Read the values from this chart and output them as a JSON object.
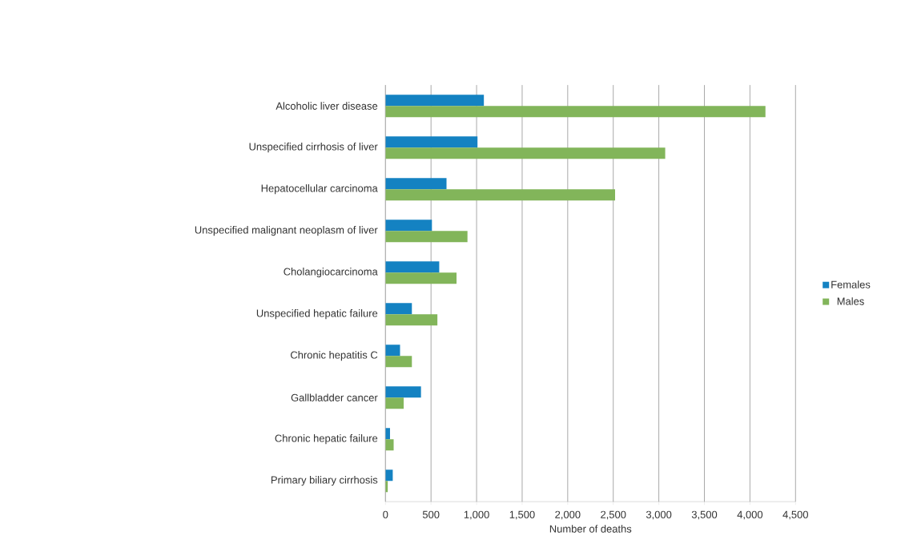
{
  "chart_data": {
    "type": "bar",
    "orientation": "horizontal",
    "xlabel": "Number of deaths",
    "categories": [
      "Alcoholic liver disease",
      "Unspecified cirrhosis of liver",
      "Hepatocellular carcinoma",
      "Unspecified malignant neoplasm of liver",
      "Cholangiocarcinoma",
      "Unspecified hepatic failure",
      "Chronic hepatitis C",
      "Gallbladder cancer",
      "Chronic hepatic failure",
      "Primary biliary cirrhosis"
    ],
    "series": [
      {
        "name": "Females",
        "color": "#1482c2",
        "values": [
          1080,
          1010,
          670,
          510,
          590,
          290,
          160,
          390,
          50,
          80
        ]
      },
      {
        "name": "Males",
        "color": "#82b55a",
        "values": [
          4170,
          3070,
          2520,
          900,
          780,
          570,
          290,
          200,
          90,
          25
        ]
      }
    ],
    "xlim": [
      0,
      4500
    ],
    "xticks": [
      0,
      500,
      {
        "value": 1000,
        "label": "1,000"
      },
      {
        "value": 1500,
        "label": "1,500"
      },
      {
        "value": 2000,
        "label": "2,000"
      },
      {
        "value": 2500,
        "label": "2,500"
      },
      {
        "value": 3000,
        "label": "3,000"
      },
      {
        "value": 3500,
        "label": "3,500"
      },
      {
        "value": 4000,
        "label": "4,000"
      },
      {
        "value": 4500,
        "label": "4,500"
      }
    ],
    "grid": "x",
    "legend": "right"
  }
}
